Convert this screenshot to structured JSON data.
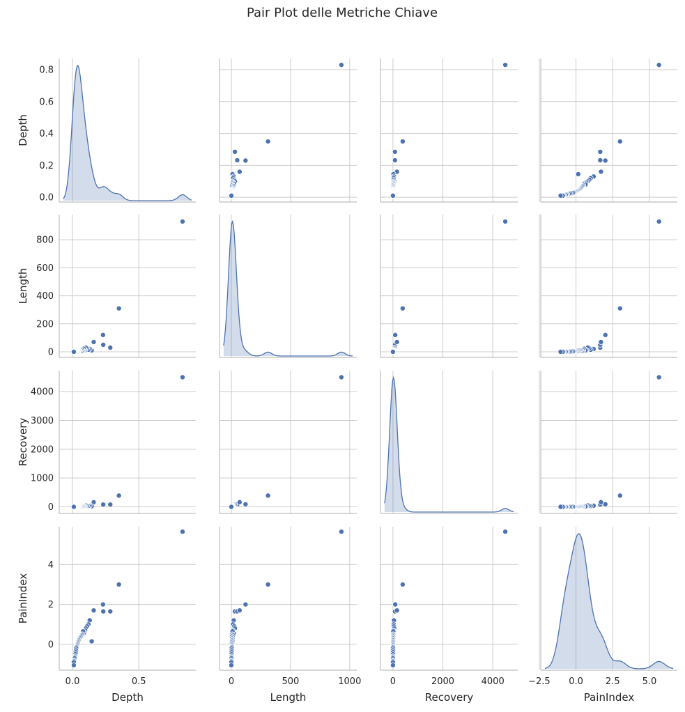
{
  "chart_data": {
    "type": "scatter",
    "subtype": "pairplot",
    "title": "Pair Plot delle Metriche Chiave",
    "variables": [
      "Depth",
      "Length",
      "Recovery",
      "PainIndex"
    ],
    "diagonal": "kde",
    "grid": true,
    "point_color": "#4c72b0",
    "kde_fill": "#4c72b0",
    "axes": {
      "Depth": {
        "range": [
          -0.1,
          0.93
        ],
        "ticks": [
          0.0,
          0.5
        ],
        "tick_labels": [
          "0.0",
          "0.5"
        ],
        "y_ticks": [
          0.0,
          0.2,
          0.4,
          0.6,
          0.8
        ],
        "y_tick_labels": [
          "0.0",
          "0.2",
          "0.4",
          "0.6",
          "0.8"
        ],
        "y_range": [
          -0.03,
          0.87
        ]
      },
      "Length": {
        "range": [
          -100,
          1060
        ],
        "ticks": [
          0,
          500,
          1000
        ],
        "tick_labels": [
          "0",
          "500",
          "1000"
        ],
        "y_ticks": [
          0,
          200,
          400,
          600,
          800
        ],
        "y_tick_labels": [
          "0",
          "200",
          "400",
          "600",
          "800"
        ],
        "y_range": [
          -40,
          980
        ]
      },
      "Recovery": {
        "range": [
          -500,
          5000
        ],
        "ticks": [
          0,
          2000,
          4000
        ],
        "tick_labels": [
          "0",
          "2000",
          "4000"
        ],
        "y_ticks": [
          0,
          1000,
          2000,
          3000,
          4000
        ],
        "y_tick_labels": [
          "0",
          "1000",
          "2000",
          "3000",
          "4000"
        ],
        "y_range": [
          -230,
          4730
        ]
      },
      "PainIndex": {
        "range": [
          -2.4,
          6.9
        ],
        "ticks": [
          -2.5,
          0.0,
          2.5,
          5.0
        ],
        "tick_labels": [
          "−2.5",
          "0.0",
          "2.5",
          "5.0"
        ],
        "y_ticks": [
          0,
          2,
          4
        ],
        "y_tick_labels": [
          "0",
          "2",
          "4"
        ],
        "y_range": [
          -1.3,
          5.9
        ]
      }
    },
    "points": {
      "Depth": [
        0.83,
        0.35,
        0.285,
        0.23,
        0.232,
        0.16,
        0.145,
        0.13,
        0.12,
        0.11,
        0.1,
        0.095,
        0.09,
        0.085,
        0.08,
        0.075,
        0.07,
        0.065,
        0.06,
        0.055,
        0.05,
        0.048,
        0.045,
        0.042,
        0.04,
        0.038,
        0.035,
        0.032,
        0.03,
        0.028,
        0.026,
        0.024,
        0.022,
        0.02,
        0.018,
        0.016,
        0.014,
        0.012,
        0.01,
        0.01
      ],
      "Length": [
        930,
        310,
        30,
        120,
        50,
        70,
        10,
        20,
        15,
        25,
        30,
        12,
        18,
        22,
        10,
        8,
        15,
        5,
        12,
        7,
        10,
        6,
        9,
        4,
        8,
        3,
        6,
        5,
        4,
        3,
        3,
        2,
        2,
        2,
        1,
        1,
        1,
        1,
        0,
        0
      ],
      "Recovery": [
        4500,
        390,
        80,
        90,
        80,
        160,
        20,
        40,
        30,
        35,
        50,
        18,
        25,
        30,
        15,
        10,
        20,
        8,
        14,
        9,
        12,
        7,
        10,
        5,
        8,
        4,
        6,
        5,
        4,
        3,
        3,
        2,
        2,
        2,
        1,
        1,
        1,
        1,
        0,
        0
      ],
      "PainIndex": [
        5.65,
        3.0,
        1.65,
        2.0,
        1.65,
        1.7,
        0.15,
        1.2,
        1.0,
        0.9,
        0.8,
        0.7,
        0.6,
        0.55,
        0.65,
        0.5,
        0.45,
        0.4,
        0.35,
        0.3,
        0.25,
        0.2,
        0.15,
        0.1,
        0.05,
        0.0,
        -0.05,
        -0.1,
        -0.15,
        -0.2,
        -0.3,
        -0.4,
        -0.5,
        -0.6,
        -0.65,
        -0.7,
        -0.8,
        -0.85,
        -0.9,
        -1.05
      ]
    }
  }
}
